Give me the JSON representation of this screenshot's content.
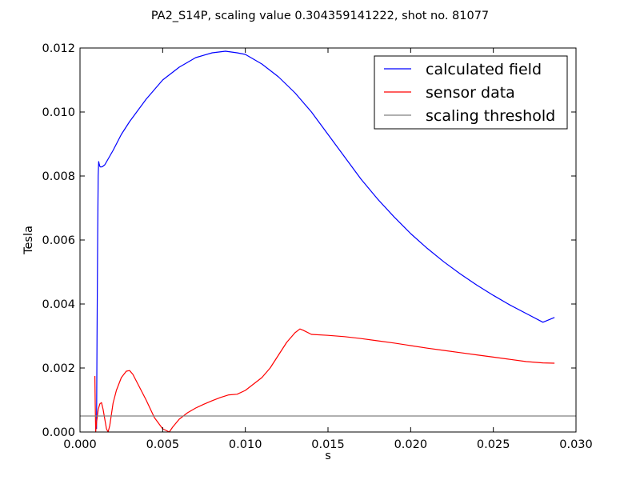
{
  "chart_data": {
    "type": "line",
    "title": "PA2_S14P, scaling value 0.304359141222, shot no. 81077",
    "xlabel": "s",
    "ylabel": "Tesla",
    "xlim": [
      0.0,
      0.03
    ],
    "ylim": [
      0.0,
      0.012
    ],
    "x_ticks": [
      "0.000",
      "0.005",
      "0.010",
      "0.015",
      "0.020",
      "0.025",
      "0.030"
    ],
    "y_ticks": [
      "0.000",
      "0.002",
      "0.004",
      "0.006",
      "0.008",
      "0.010",
      "0.012"
    ],
    "grid": false,
    "legend_position": "top-right",
    "series": [
      {
        "name": "calculated field",
        "color": "#0000ff",
        "x": [
          0.001,
          0.00103,
          0.00107,
          0.0011,
          0.00113,
          0.00116,
          0.0012,
          0.00125,
          0.00135,
          0.0015,
          0.002,
          0.0025,
          0.003,
          0.004,
          0.005,
          0.006,
          0.007,
          0.008,
          0.0088,
          0.0095,
          0.01,
          0.011,
          0.012,
          0.013,
          0.014,
          0.015,
          0.016,
          0.017,
          0.018,
          0.019,
          0.02,
          0.021,
          0.022,
          0.023,
          0.024,
          0.025,
          0.026,
          0.027,
          0.028,
          0.0287
        ],
        "y": [
          0.0001,
          0.003,
          0.0062,
          0.008,
          0.00845,
          0.00838,
          0.0083,
          0.00828,
          0.00829,
          0.00835,
          0.0088,
          0.0093,
          0.0097,
          0.0104,
          0.011,
          0.0114,
          0.0117,
          0.01185,
          0.0119,
          0.01185,
          0.0118,
          0.0115,
          0.0111,
          0.0106,
          0.01,
          0.0093,
          0.0086,
          0.0079,
          0.00728,
          0.00672,
          0.0062,
          0.00574,
          0.00532,
          0.00494,
          0.00459,
          0.00427,
          0.00397,
          0.0037,
          0.00343,
          0.00358
        ]
      },
      {
        "name": "sensor data",
        "color": "#ff0000",
        "x": [
          0.0009,
          0.00092,
          0.00095,
          0.001,
          0.0011,
          0.0012,
          0.0013,
          0.0014,
          0.0015,
          0.0016,
          0.0017,
          0.0018,
          0.002,
          0.0022,
          0.0025,
          0.0028,
          0.003,
          0.0032,
          0.0035,
          0.004,
          0.0045,
          0.005,
          0.0054,
          0.0056,
          0.006,
          0.0065,
          0.007,
          0.0075,
          0.008,
          0.0085,
          0.009,
          0.0095,
          0.01,
          0.0105,
          0.011,
          0.0115,
          0.012,
          0.0125,
          0.013,
          0.0133,
          0.0135,
          0.014,
          0.015,
          0.016,
          0.017,
          0.018,
          0.019,
          0.02,
          0.021,
          0.022,
          0.023,
          0.024,
          0.025,
          0.026,
          0.027,
          0.028,
          0.0287
        ],
        "y": [
          0.00175,
          0.0009,
          0.0,
          0.0003,
          0.0007,
          0.00088,
          0.00092,
          0.0007,
          0.0004,
          0.0001,
          0.0,
          0.0002,
          0.0009,
          0.0013,
          0.0017,
          0.0019,
          0.00192,
          0.0018,
          0.0015,
          0.001,
          0.00045,
          0.0001,
          0.0,
          0.00015,
          0.0004,
          0.0006,
          0.00075,
          0.00087,
          0.00098,
          0.00108,
          0.00116,
          0.00118,
          0.0013,
          0.0015,
          0.0017,
          0.002,
          0.0024,
          0.0028,
          0.0031,
          0.00322,
          0.00318,
          0.00305,
          0.00302,
          0.00298,
          0.00292,
          0.00285,
          0.00278,
          0.0027,
          0.00262,
          0.00255,
          0.00248,
          0.00241,
          0.00234,
          0.00227,
          0.0022,
          0.00216,
          0.00215
        ]
      },
      {
        "name": "scaling threshold",
        "color": "#808080",
        "x": [
          0.0,
          0.03
        ],
        "y": [
          0.0005,
          0.0005
        ]
      }
    ]
  }
}
